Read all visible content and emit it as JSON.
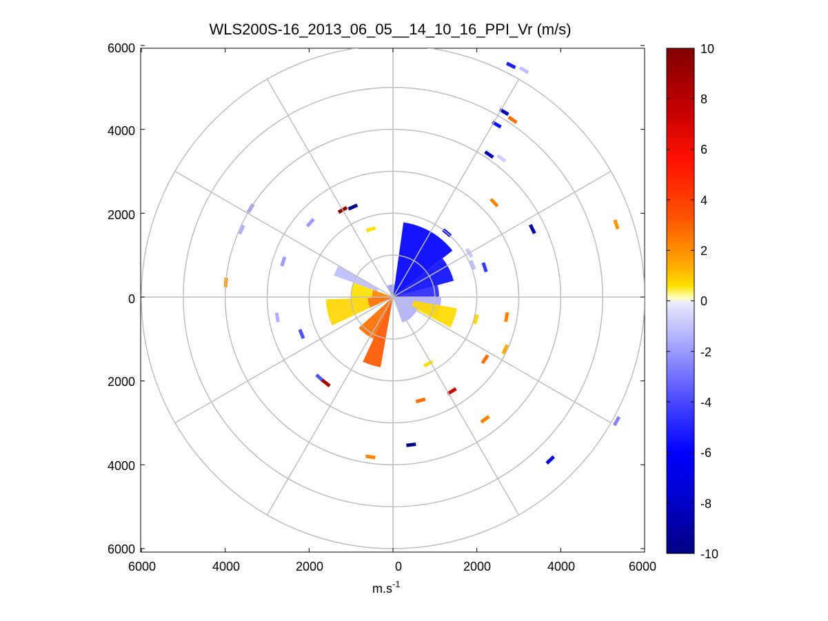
{
  "chart_data": {
    "type": "heatmap",
    "subtype": "polar-ppi",
    "title": "WLS200S-16_2013_06_05__14_10_16_PPI_Vr (m/s)",
    "xlabel": "m.s",
    "xlabel_superscript": "-1",
    "xlim": [
      -6000,
      6000
    ],
    "ylim": [
      -6000,
      6000
    ],
    "x_tick_labels": [
      "6000",
      "4000",
      "2000",
      "0",
      "2000",
      "4000",
      "6000"
    ],
    "y_tick_labels": [
      "6000",
      "4000",
      "2000",
      "0",
      "2000",
      "4000",
      "6000"
    ],
    "range_rings": [
      1000,
      2000,
      3000,
      4000,
      5000,
      6000
    ],
    "spoke_angles_deg": [
      0,
      30,
      60,
      90,
      120,
      150,
      180,
      210,
      240,
      270,
      300,
      330
    ],
    "colorbar": {
      "min": -10,
      "max": 10,
      "tick_values": [
        10,
        8,
        6,
        4,
        2,
        0,
        -2,
        -4,
        -6,
        -8,
        -10
      ],
      "tick_labels": [
        "10",
        "8",
        "6",
        "4",
        "2",
        "0",
        "-2",
        "-4",
        "-6",
        "-8",
        "-10"
      ],
      "colormap": "blue-white-yellow-red"
    },
    "sectors": [
      {
        "az_from": 8,
        "az_to": 52,
        "r_from": 0,
        "r_to": 1800,
        "vr": -6.0
      },
      {
        "az_from": 52,
        "az_to": 75,
        "r_from": 0,
        "r_to": 1500,
        "vr": -5.5
      },
      {
        "az_from": 75,
        "az_to": 90,
        "r_from": 0,
        "r_to": 1100,
        "vr": -4.5
      },
      {
        "az_from": 90,
        "az_to": 115,
        "r_from": 0,
        "r_to": 1150,
        "vr": -1.5
      },
      {
        "az_from": 100,
        "az_to": 118,
        "r_from": 500,
        "r_to": 1550,
        "vr": 1.2
      },
      {
        "az_from": 115,
        "az_to": 160,
        "r_from": 0,
        "r_to": 650,
        "vr": -1.5
      },
      {
        "az_from": 190,
        "az_to": 205,
        "r_from": 0,
        "r_to": 1700,
        "vr": 4.5
      },
      {
        "az_from": 205,
        "az_to": 228,
        "r_from": 0,
        "r_to": 1100,
        "vr": 4.0
      },
      {
        "az_from": 245,
        "az_to": 268,
        "r_from": 0,
        "r_to": 600,
        "vr": 4.0
      },
      {
        "az_from": 245,
        "az_to": 268,
        "r_from": 600,
        "r_to": 1600,
        "vr": 1.3
      },
      {
        "az_from": 268,
        "az_to": 290,
        "r_from": 0,
        "r_to": 500,
        "vr": 3.5
      },
      {
        "az_from": 268,
        "az_to": 290,
        "r_from": 500,
        "r_to": 1000,
        "vr": 1.0
      },
      {
        "az_from": 290,
        "az_to": 300,
        "r_from": 400,
        "r_to": 1500,
        "vr": -1.2
      },
      {
        "az_from": 330,
        "az_to": 8,
        "r_from": 0,
        "r_to": 300,
        "vr": -2.0
      }
    ],
    "gates": [
      {
        "az": 27,
        "r": 6200,
        "vr": -5.0
      },
      {
        "az": 30,
        "r": 6250,
        "vr": -1.2
      },
      {
        "az": 31,
        "r": 5150,
        "vr": -8.5
      },
      {
        "az": 34,
        "r": 5100,
        "vr": 4.0
      },
      {
        "az": 34,
        "r": 4100,
        "vr": -8.5
      },
      {
        "az": 31,
        "r": 4800,
        "vr": -5.5
      },
      {
        "az": 38,
        "r": 4200,
        "vr": -0.8
      },
      {
        "az": 47,
        "r": 3300,
        "vr": 3.5
      },
      {
        "az": 64,
        "r": 3700,
        "vr": -9.0
      },
      {
        "az": 72,
        "r": 5600,
        "vr": 3.0
      },
      {
        "az": -24,
        "r": 2350,
        "vr": -9.8
      },
      {
        "az": -48,
        "r": 2650,
        "vr": -2.0
      },
      {
        "az": -72,
        "r": 2750,
        "vr": -2.0
      },
      {
        "az": -66,
        "r": 3950,
        "vr": -1.5
      },
      {
        "az": -58,
        "r": 4000,
        "vr": -2.0
      },
      {
        "az": -85,
        "r": 4000,
        "vr": 3.0
      },
      {
        "az": -100,
        "r": 2800,
        "vr": -1.5
      },
      {
        "az": -112,
        "r": 2350,
        "vr": -3.5
      },
      {
        "az": -138,
        "r": 2600,
        "vr": -3.5
      },
      {
        "az": -142,
        "r": 2600,
        "vr": 9.0
      },
      {
        "az": 143,
        "r": 3650,
        "vr": 3.5
      },
      {
        "az": 148,
        "r": 2650,
        "vr": 8.0
      },
      {
        "az": 124,
        "r": 2650,
        "vr": 4.0
      },
      {
        "az": 115,
        "r": 2950,
        "vr": 2.5
      },
      {
        "az": 165,
        "r": 2550,
        "vr": 4.0
      },
      {
        "az": 119,
        "r": 6100,
        "vr": -2.5
      },
      {
        "az": 136,
        "r": 5400,
        "vr": -7.0
      },
      {
        "az": 173,
        "r": 3550,
        "vr": -10.0
      },
      {
        "az": 188,
        "r": 3850,
        "vr": 3.5
      },
      {
        "az": 152,
        "r": 1800,
        "vr": 1.0
      },
      {
        "az": 105,
        "r": 2050,
        "vr": 1.2
      },
      {
        "az": 100,
        "r": 2750,
        "vr": 3.5
      },
      {
        "az": -30,
        "r": 2400,
        "vr": 9.5
      },
      {
        "az": -18,
        "r": 1700,
        "vr": 1.0
      },
      {
        "az": 60,
        "r": 2100,
        "vr": -1.0
      },
      {
        "az": 68,
        "r": 2050,
        "vr": -1.2
      },
      {
        "az": 72,
        "r": 2300,
        "vr": -4.0
      },
      {
        "az": 40,
        "r": 2000,
        "vr": -6.0
      }
    ]
  }
}
